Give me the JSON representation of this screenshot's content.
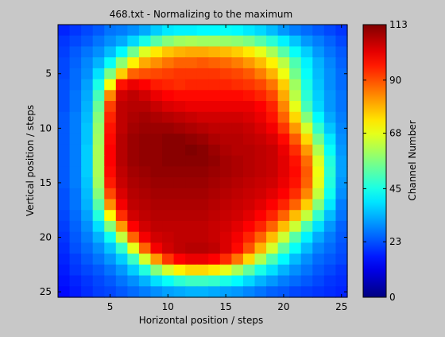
{
  "chart_data": {
    "type": "heatmap",
    "title": "468.txt - Normalizing to the maximum",
    "xlabel": "Horizontal position / steps",
    "ylabel": "Vertical position / steps",
    "xlim": [
      0.5,
      25.5
    ],
    "ylim": [
      0.5,
      25.5
    ],
    "xticks": [
      5,
      10,
      15,
      20,
      25
    ],
    "yticks": [
      5,
      10,
      15,
      20,
      25
    ],
    "colormap": "jet",
    "clim": [
      0,
      113
    ],
    "colorbar": {
      "label": "Channel Number",
      "ticks": [
        0,
        23,
        45,
        68,
        90,
        113
      ]
    },
    "values": [
      [
        18,
        20,
        22,
        24,
        27,
        28,
        30,
        33,
        37,
        40,
        41,
        41,
        42,
        42,
        43,
        42,
        40,
        38,
        35,
        31,
        28,
        26,
        24,
        22,
        20
      ],
      [
        20,
        22,
        24,
        27,
        30,
        33,
        38,
        45,
        52,
        57,
        60,
        61,
        60,
        60,
        59,
        58,
        56,
        52,
        47,
        41,
        36,
        31,
        28,
        25,
        22
      ],
      [
        21,
        24,
        27,
        30,
        35,
        42,
        55,
        67,
        73,
        77,
        79,
        80,
        80,
        79,
        78,
        76,
        73,
        68,
        61,
        52,
        43,
        37,
        31,
        27,
        24
      ],
      [
        22,
        25,
        29,
        34,
        43,
        58,
        72,
        80,
        83,
        86,
        88,
        88,
        89,
        88,
        87,
        85,
        82,
        78,
        72,
        63,
        51,
        41,
        34,
        29,
        25
      ],
      [
        22,
        26,
        30,
        39,
        56,
        76,
        88,
        90,
        91,
        92,
        93,
        93,
        93,
        93,
        92,
        91,
        89,
        85,
        79,
        69,
        55,
        43,
        35,
        30,
        26
      ],
      [
        23,
        26,
        32,
        45,
        70,
        97,
        101,
        99,
        96,
        95,
        94,
        95,
        95,
        95,
        95,
        94,
        93,
        91,
        86,
        76,
        60,
        45,
        36,
        30,
        26
      ],
      [
        23,
        27,
        33,
        50,
        84,
        104,
        106,
        104,
        101,
        99,
        98,
        98,
        98,
        98,
        98,
        98,
        97,
        95,
        91,
        80,
        63,
        47,
        37,
        31,
        27
      ],
      [
        23,
        27,
        34,
        54,
        92,
        106,
        107,
        107,
        105,
        103,
        102,
        101,
        101,
        101,
        101,
        101,
        101,
        99,
        95,
        84,
        68,
        50,
        38,
        31,
        27
      ],
      [
        24,
        28,
        35,
        57,
        95,
        106,
        108,
        109,
        108,
        107,
        106,
        105,
        104,
        104,
        104,
        104,
        103,
        101,
        97,
        88,
        75,
        57,
        42,
        33,
        28
      ],
      [
        24,
        28,
        36,
        59,
        97,
        106,
        109,
        110,
        110,
        110,
        109,
        108,
        107,
        106,
        106,
        106,
        105,
        103,
        100,
        93,
        82,
        66,
        48,
        36,
        29
      ],
      [
        24,
        28,
        36,
        60,
        98,
        107,
        110,
        111,
        111,
        112,
        112,
        111,
        110,
        108,
        107,
        107,
        106,
        105,
        103,
        98,
        89,
        75,
        55,
        40,
        30
      ],
      [
        24,
        28,
        37,
        61,
        99,
        107,
        110,
        111,
        111,
        112,
        112,
        113,
        112,
        110,
        108,
        107,
        107,
        106,
        105,
        101,
        94,
        82,
        62,
        43,
        31
      ],
      [
        24,
        28,
        37,
        61,
        99,
        107,
        110,
        111,
        111,
        112,
        112,
        112,
        112,
        111,
        109,
        108,
        107,
        106,
        105,
        102,
        97,
        87,
        67,
        46,
        32
      ],
      [
        24,
        28,
        37,
        61,
        98,
        106,
        109,
        110,
        111,
        111,
        111,
        111,
        111,
        110,
        109,
        108,
        107,
        106,
        105,
        102,
        98,
        89,
        69,
        47,
        32
      ],
      [
        24,
        28,
        36,
        60,
        96,
        105,
        108,
        109,
        110,
        110,
        110,
        110,
        110,
        109,
        108,
        107,
        106,
        105,
        104,
        101,
        97,
        88,
        68,
        46,
        31
      ],
      [
        23,
        27,
        35,
        57,
        91,
        103,
        107,
        108,
        109,
        109,
        109,
        109,
        109,
        108,
        107,
        106,
        105,
        104,
        102,
        99,
        94,
        84,
        64,
        44,
        30
      ],
      [
        23,
        27,
        34,
        52,
        83,
        100,
        106,
        107,
        108,
        108,
        108,
        108,
        108,
        107,
        106,
        105,
        104,
        102,
        99,
        95,
        88,
        76,
        57,
        40,
        28
      ],
      [
        22,
        26,
        32,
        46,
        71,
        94,
        104,
        106,
        107,
        107,
        107,
        107,
        107,
        106,
        105,
        104,
        102,
        99,
        95,
        88,
        78,
        64,
        48,
        35,
        27
      ],
      [
        21,
        25,
        30,
        39,
        57,
        82,
        99,
        104,
        106,
        106,
        106,
        106,
        106,
        105,
        104,
        102,
        99,
        95,
        88,
        78,
        65,
        51,
        39,
        31,
        25
      ],
      [
        20,
        24,
        28,
        34,
        44,
        64,
        88,
        100,
        104,
        105,
        106,
        106,
        106,
        105,
        103,
        100,
        95,
        88,
        78,
        65,
        52,
        41,
        33,
        28,
        24
      ],
      [
        19,
        23,
        26,
        30,
        36,
        48,
        68,
        88,
        100,
        104,
        106,
        107,
        107,
        106,
        103,
        98,
        90,
        79,
        66,
        53,
        43,
        35,
        29,
        26,
        23
      ],
      [
        18,
        21,
        24,
        27,
        31,
        37,
        49,
        66,
        82,
        93,
        99,
        101,
        101,
        99,
        94,
        86,
        75,
        62,
        51,
        42,
        35,
        30,
        26,
        24,
        22
      ],
      [
        17,
        20,
        22,
        24,
        27,
        31,
        37,
        46,
        57,
        66,
        72,
        75,
        75,
        73,
        68,
        61,
        53,
        45,
        39,
        34,
        30,
        27,
        24,
        22,
        20
      ],
      [
        16,
        18,
        20,
        22,
        24,
        27,
        30,
        34,
        39,
        43,
        47,
        49,
        49,
        48,
        45,
        42,
        38,
        34,
        31,
        28,
        26,
        24,
        22,
        20,
        19
      ],
      [
        15,
        17,
        19,
        21,
        22,
        24,
        26,
        28,
        30,
        32,
        33,
        34,
        34,
        33,
        32,
        31,
        29,
        27,
        25,
        24,
        22,
        21,
        20,
        19,
        18
      ]
    ]
  }
}
